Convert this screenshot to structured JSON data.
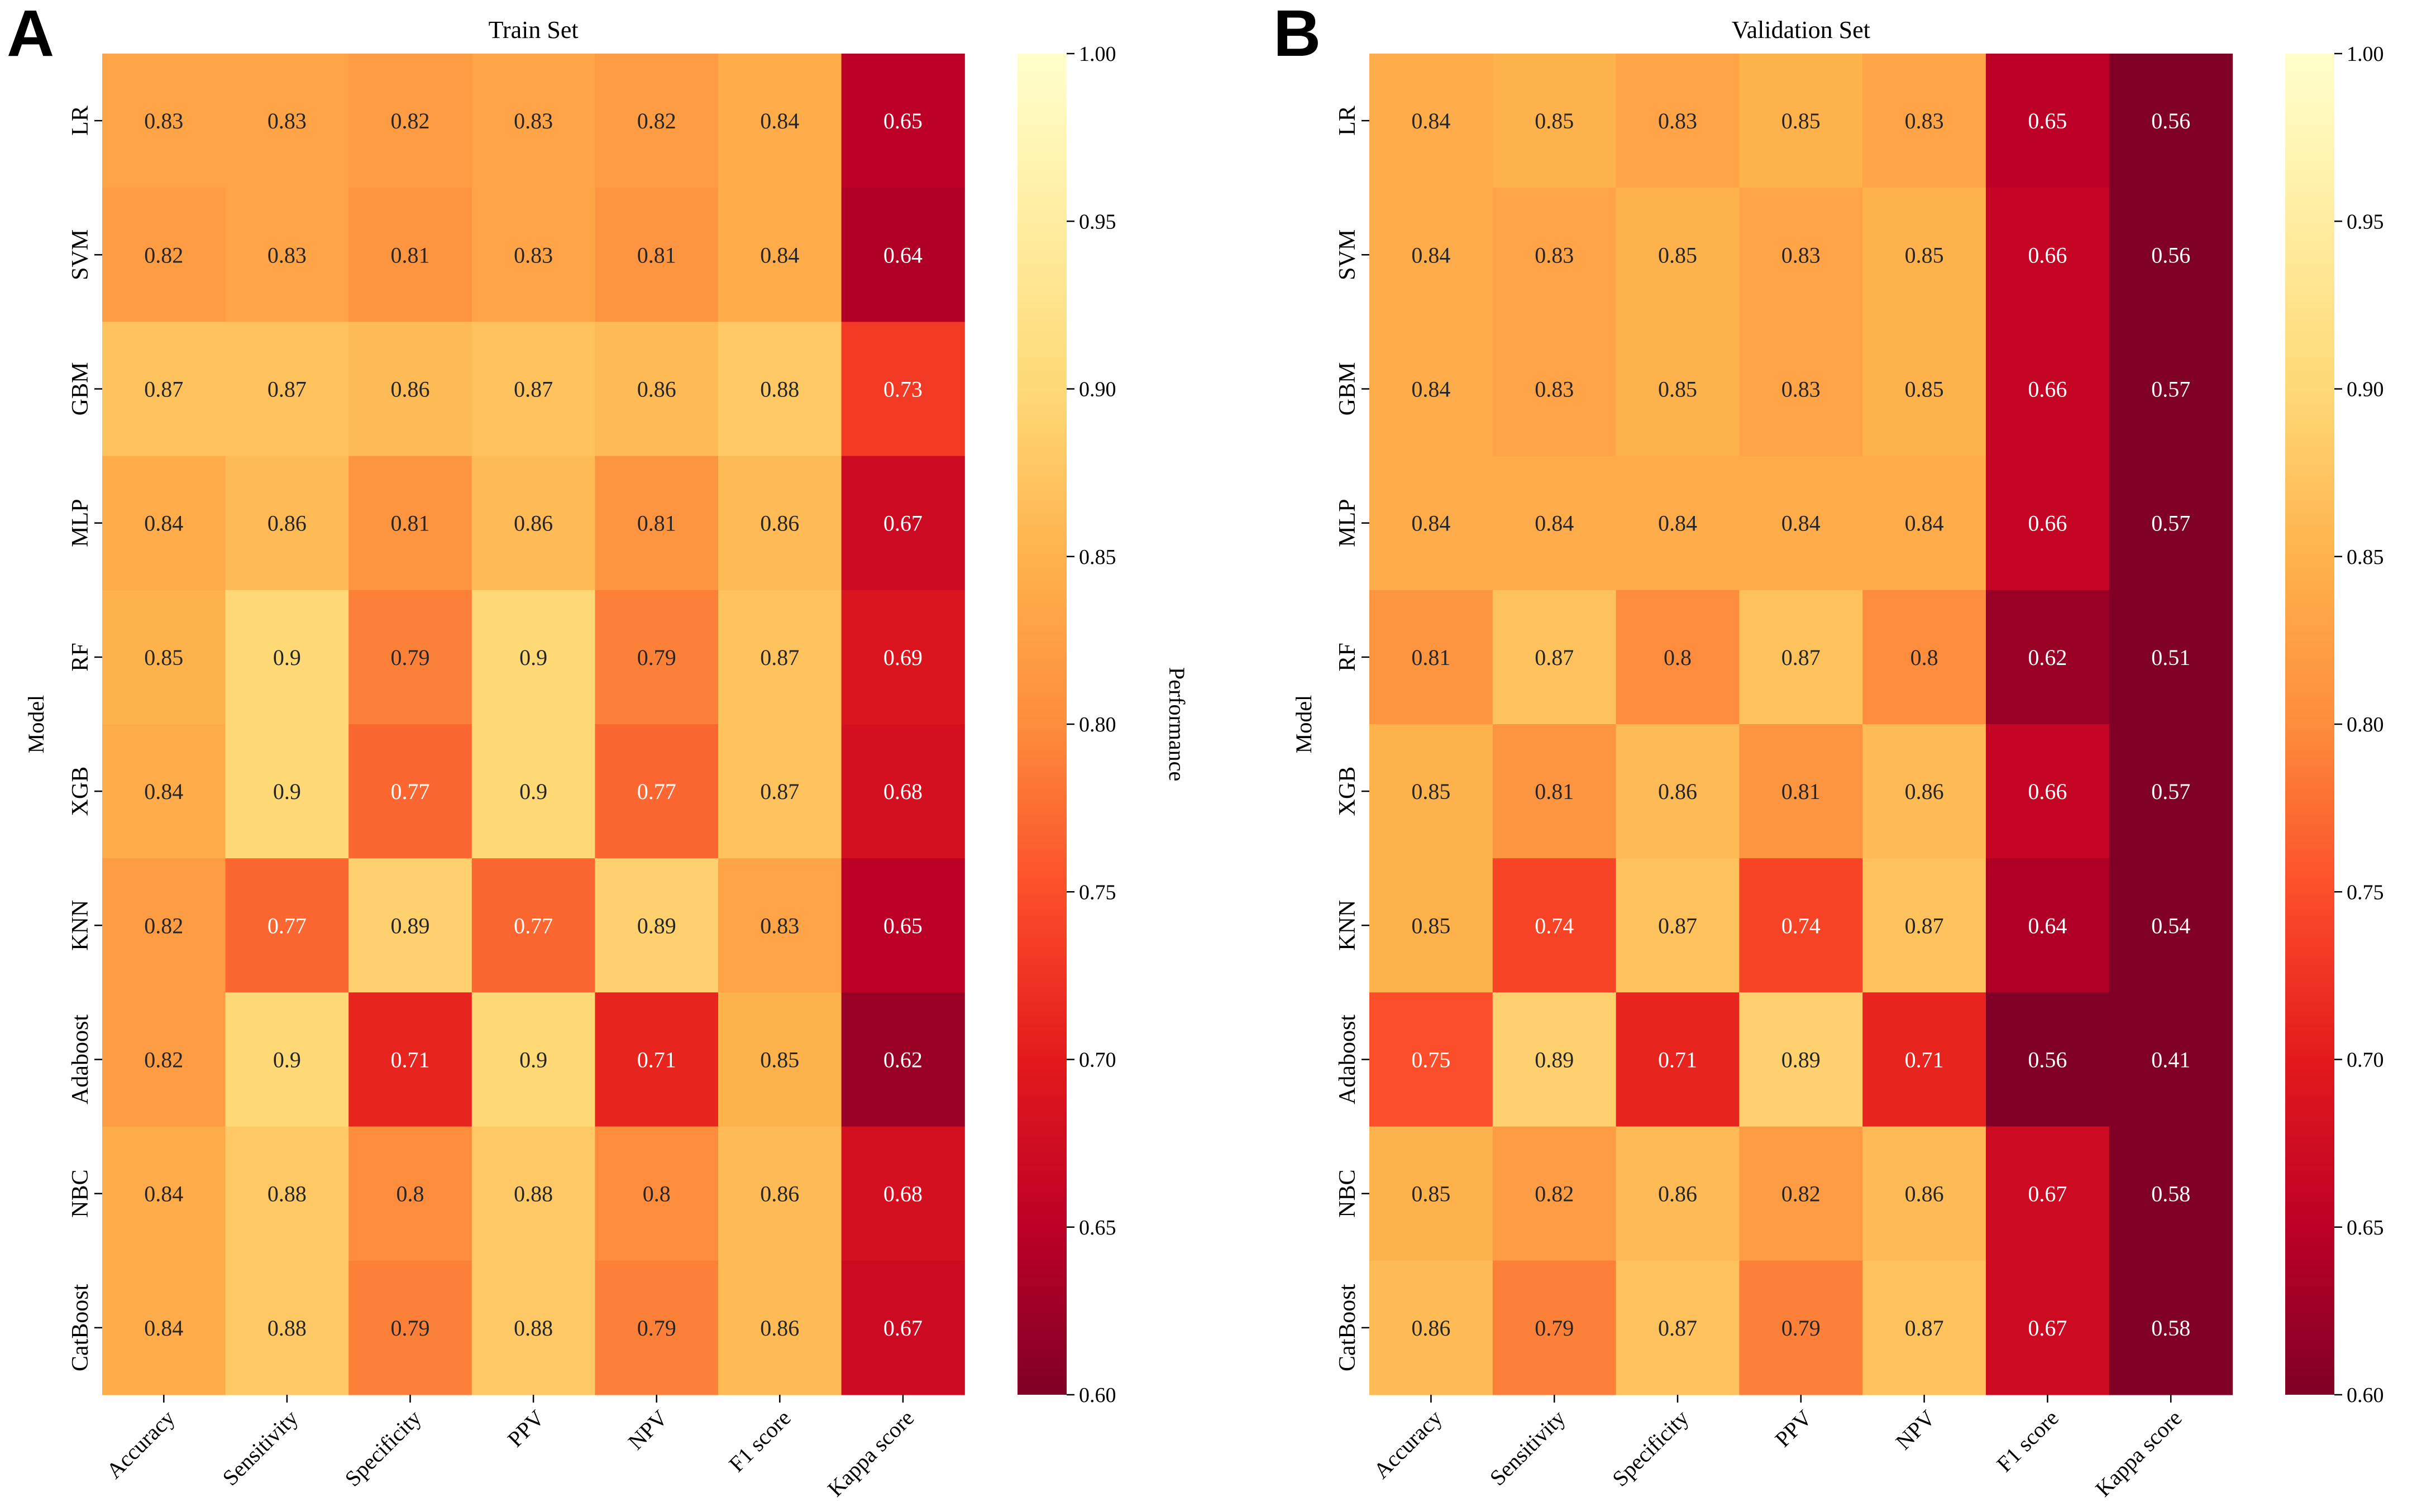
{
  "colors": {
    "colormap": [
      "#800026",
      "#bd0026",
      "#e31a1c",
      "#fc4e2a",
      "#fd8d3c",
      "#feb24c",
      "#fed976",
      "#ffeda0",
      "#ffffcc"
    ],
    "text": "#000000",
    "background": "#ffffff"
  },
  "chart_data": [
    {
      "type": "heatmap",
      "panel_label": "A",
      "title": "Train Set",
      "xlabel": "",
      "ylabel": "Model",
      "colorbar_label": "Performance",
      "vmin": 0.6,
      "vmax": 1.0,
      "colorbar_ticks": [
        "0.60",
        "0.65",
        "0.70",
        "0.75",
        "0.80",
        "0.85",
        "0.90",
        "0.95",
        "1.00"
      ],
      "colorbar_tick_values": [
        0.6,
        0.65,
        0.7,
        0.75,
        0.8,
        0.85,
        0.9,
        0.95,
        1.0
      ],
      "columns": [
        "Accuracy",
        "Sensitivity",
        "Specificity",
        "PPV",
        "NPV",
        "F1 score",
        "Kappa score"
      ],
      "rows": [
        "LR",
        "SVM",
        "GBM",
        "MLP",
        "RF",
        "XGB",
        "KNN",
        "Adaboost",
        "NBC",
        "CatBoost"
      ],
      "values": [
        [
          0.83,
          0.83,
          0.82,
          0.83,
          0.82,
          0.84,
          0.65
        ],
        [
          0.82,
          0.83,
          0.81,
          0.83,
          0.81,
          0.84,
          0.64
        ],
        [
          0.87,
          0.87,
          0.86,
          0.87,
          0.86,
          0.88,
          0.73
        ],
        [
          0.84,
          0.86,
          0.81,
          0.86,
          0.81,
          0.86,
          0.67
        ],
        [
          0.85,
          0.9,
          0.79,
          0.9,
          0.79,
          0.87,
          0.69
        ],
        [
          0.84,
          0.9,
          0.77,
          0.9,
          0.77,
          0.87,
          0.68
        ],
        [
          0.82,
          0.77,
          0.89,
          0.77,
          0.89,
          0.83,
          0.65
        ],
        [
          0.82,
          0.9,
          0.71,
          0.9,
          0.71,
          0.85,
          0.62
        ],
        [
          0.84,
          0.88,
          0.8,
          0.88,
          0.8,
          0.86,
          0.68
        ],
        [
          0.84,
          0.88,
          0.79,
          0.88,
          0.79,
          0.86,
          0.67
        ]
      ],
      "labels": [
        [
          "0.83",
          "0.83",
          "0.82",
          "0.83",
          "0.82",
          "0.84",
          "0.65"
        ],
        [
          "0.82",
          "0.83",
          "0.81",
          "0.83",
          "0.81",
          "0.84",
          "0.64"
        ],
        [
          "0.87",
          "0.87",
          "0.86",
          "0.87",
          "0.86",
          "0.88",
          "0.73"
        ],
        [
          "0.84",
          "0.86",
          "0.81",
          "0.86",
          "0.81",
          "0.86",
          "0.67"
        ],
        [
          "0.85",
          "0.9",
          "0.79",
          "0.9",
          "0.79",
          "0.87",
          "0.69"
        ],
        [
          "0.84",
          "0.9",
          "0.77",
          "0.9",
          "0.77",
          "0.87",
          "0.68"
        ],
        [
          "0.82",
          "0.77",
          "0.89",
          "0.77",
          "0.89",
          "0.83",
          "0.65"
        ],
        [
          "0.82",
          "0.9",
          "0.71",
          "0.9",
          "0.71",
          "0.85",
          "0.62"
        ],
        [
          "0.84",
          "0.88",
          "0.8",
          "0.88",
          "0.8",
          "0.86",
          "0.68"
        ],
        [
          "0.84",
          "0.88",
          "0.79",
          "0.88",
          "0.79",
          "0.86",
          "0.67"
        ]
      ]
    },
    {
      "type": "heatmap",
      "panel_label": "B",
      "title": "Validation Set",
      "xlabel": "",
      "ylabel": "Model",
      "colorbar_label": "",
      "vmin": 0.6,
      "vmax": 1.0,
      "colorbar_ticks": [
        "0.60",
        "0.65",
        "0.70",
        "0.75",
        "0.80",
        "0.85",
        "0.90",
        "0.95",
        "1.00"
      ],
      "colorbar_tick_values": [
        0.6,
        0.65,
        0.7,
        0.75,
        0.8,
        0.85,
        0.9,
        0.95,
        1.0
      ],
      "columns": [
        "Accuracy",
        "Sensitivity",
        "Specificity",
        "PPV",
        "NPV",
        "F1 score",
        "Kappa score"
      ],
      "rows": [
        "LR",
        "SVM",
        "GBM",
        "MLP",
        "RF",
        "XGB",
        "KNN",
        "Adaboost",
        "NBC",
        "CatBoost"
      ],
      "values": [
        [
          0.84,
          0.85,
          0.83,
          0.85,
          0.83,
          0.65,
          0.56
        ],
        [
          0.84,
          0.83,
          0.85,
          0.83,
          0.85,
          0.66,
          0.56
        ],
        [
          0.84,
          0.83,
          0.85,
          0.83,
          0.85,
          0.66,
          0.57
        ],
        [
          0.84,
          0.84,
          0.84,
          0.84,
          0.84,
          0.66,
          0.57
        ],
        [
          0.81,
          0.87,
          0.8,
          0.87,
          0.8,
          0.62,
          0.51
        ],
        [
          0.85,
          0.81,
          0.86,
          0.81,
          0.86,
          0.66,
          0.57
        ],
        [
          0.85,
          0.74,
          0.87,
          0.74,
          0.87,
          0.64,
          0.54
        ],
        [
          0.75,
          0.89,
          0.71,
          0.89,
          0.71,
          0.56,
          0.41
        ],
        [
          0.85,
          0.82,
          0.86,
          0.82,
          0.86,
          0.67,
          0.58
        ],
        [
          0.86,
          0.79,
          0.87,
          0.79,
          0.87,
          0.67,
          0.58
        ]
      ],
      "labels": [
        [
          "0.84",
          "0.85",
          "0.83",
          "0.85",
          "0.83",
          "0.65",
          "0.56"
        ],
        [
          "0.84",
          "0.83",
          "0.85",
          "0.83",
          "0.85",
          "0.66",
          "0.56"
        ],
        [
          "0.84",
          "0.83",
          "0.85",
          "0.83",
          "0.85",
          "0.66",
          "0.57"
        ],
        [
          "0.84",
          "0.84",
          "0.84",
          "0.84",
          "0.84",
          "0.66",
          "0.57"
        ],
        [
          "0.81",
          "0.87",
          "0.8",
          "0.87",
          "0.8",
          "0.62",
          "0.51"
        ],
        [
          "0.85",
          "0.81",
          "0.86",
          "0.81",
          "0.86",
          "0.66",
          "0.57"
        ],
        [
          "0.85",
          "0.74",
          "0.87",
          "0.74",
          "0.87",
          "0.64",
          "0.54"
        ],
        [
          "0.75",
          "0.89",
          "0.71",
          "0.89",
          "0.71",
          "0.56",
          "0.41"
        ],
        [
          "0.85",
          "0.82",
          "0.86",
          "0.82",
          "0.86",
          "0.67",
          "0.58"
        ],
        [
          "0.86",
          "0.79",
          "0.87",
          "0.79",
          "0.87",
          "0.67",
          "0.58"
        ]
      ]
    }
  ]
}
